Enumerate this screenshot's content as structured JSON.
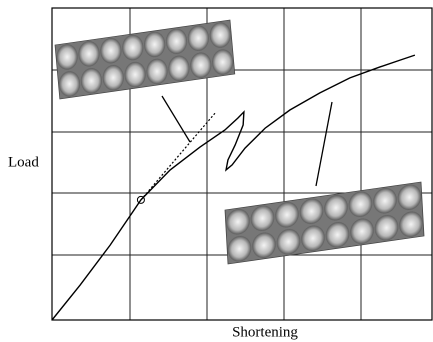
{
  "chart_data": {
    "type": "line",
    "xlabel": "Shortening",
    "ylabel": "Load",
    "xlim": [
      0,
      100
    ],
    "ylim": [
      0,
      100
    ],
    "series": [
      {
        "color": "#000000",
        "style": "solid",
        "x": [
          0,
          7.4,
          15.3,
          23.4,
          31.1,
          38.9,
          45.5,
          48.9,
          50.5,
          50.3,
          48.2,
          46.3,
          45.8,
          47.4,
          50.8,
          56.1,
          62.6,
          70.5,
          78.4,
          86.3,
          91.6,
          95.5
        ],
        "values": [
          0,
          11.2,
          24,
          38.5,
          48.1,
          55.4,
          60.9,
          64.7,
          66.7,
          62.5,
          56.1,
          51.3,
          48.1,
          49.7,
          55.1,
          61.5,
          67.3,
          72.8,
          77.6,
          81.1,
          83.3,
          84.9
        ],
        "marker_index": 3
      },
      {
        "color": "#000000",
        "style": "dotted",
        "x": [
          23.4,
          42.9
        ],
        "values": [
          38.5,
          66.3
        ]
      }
    ]
  }
}
